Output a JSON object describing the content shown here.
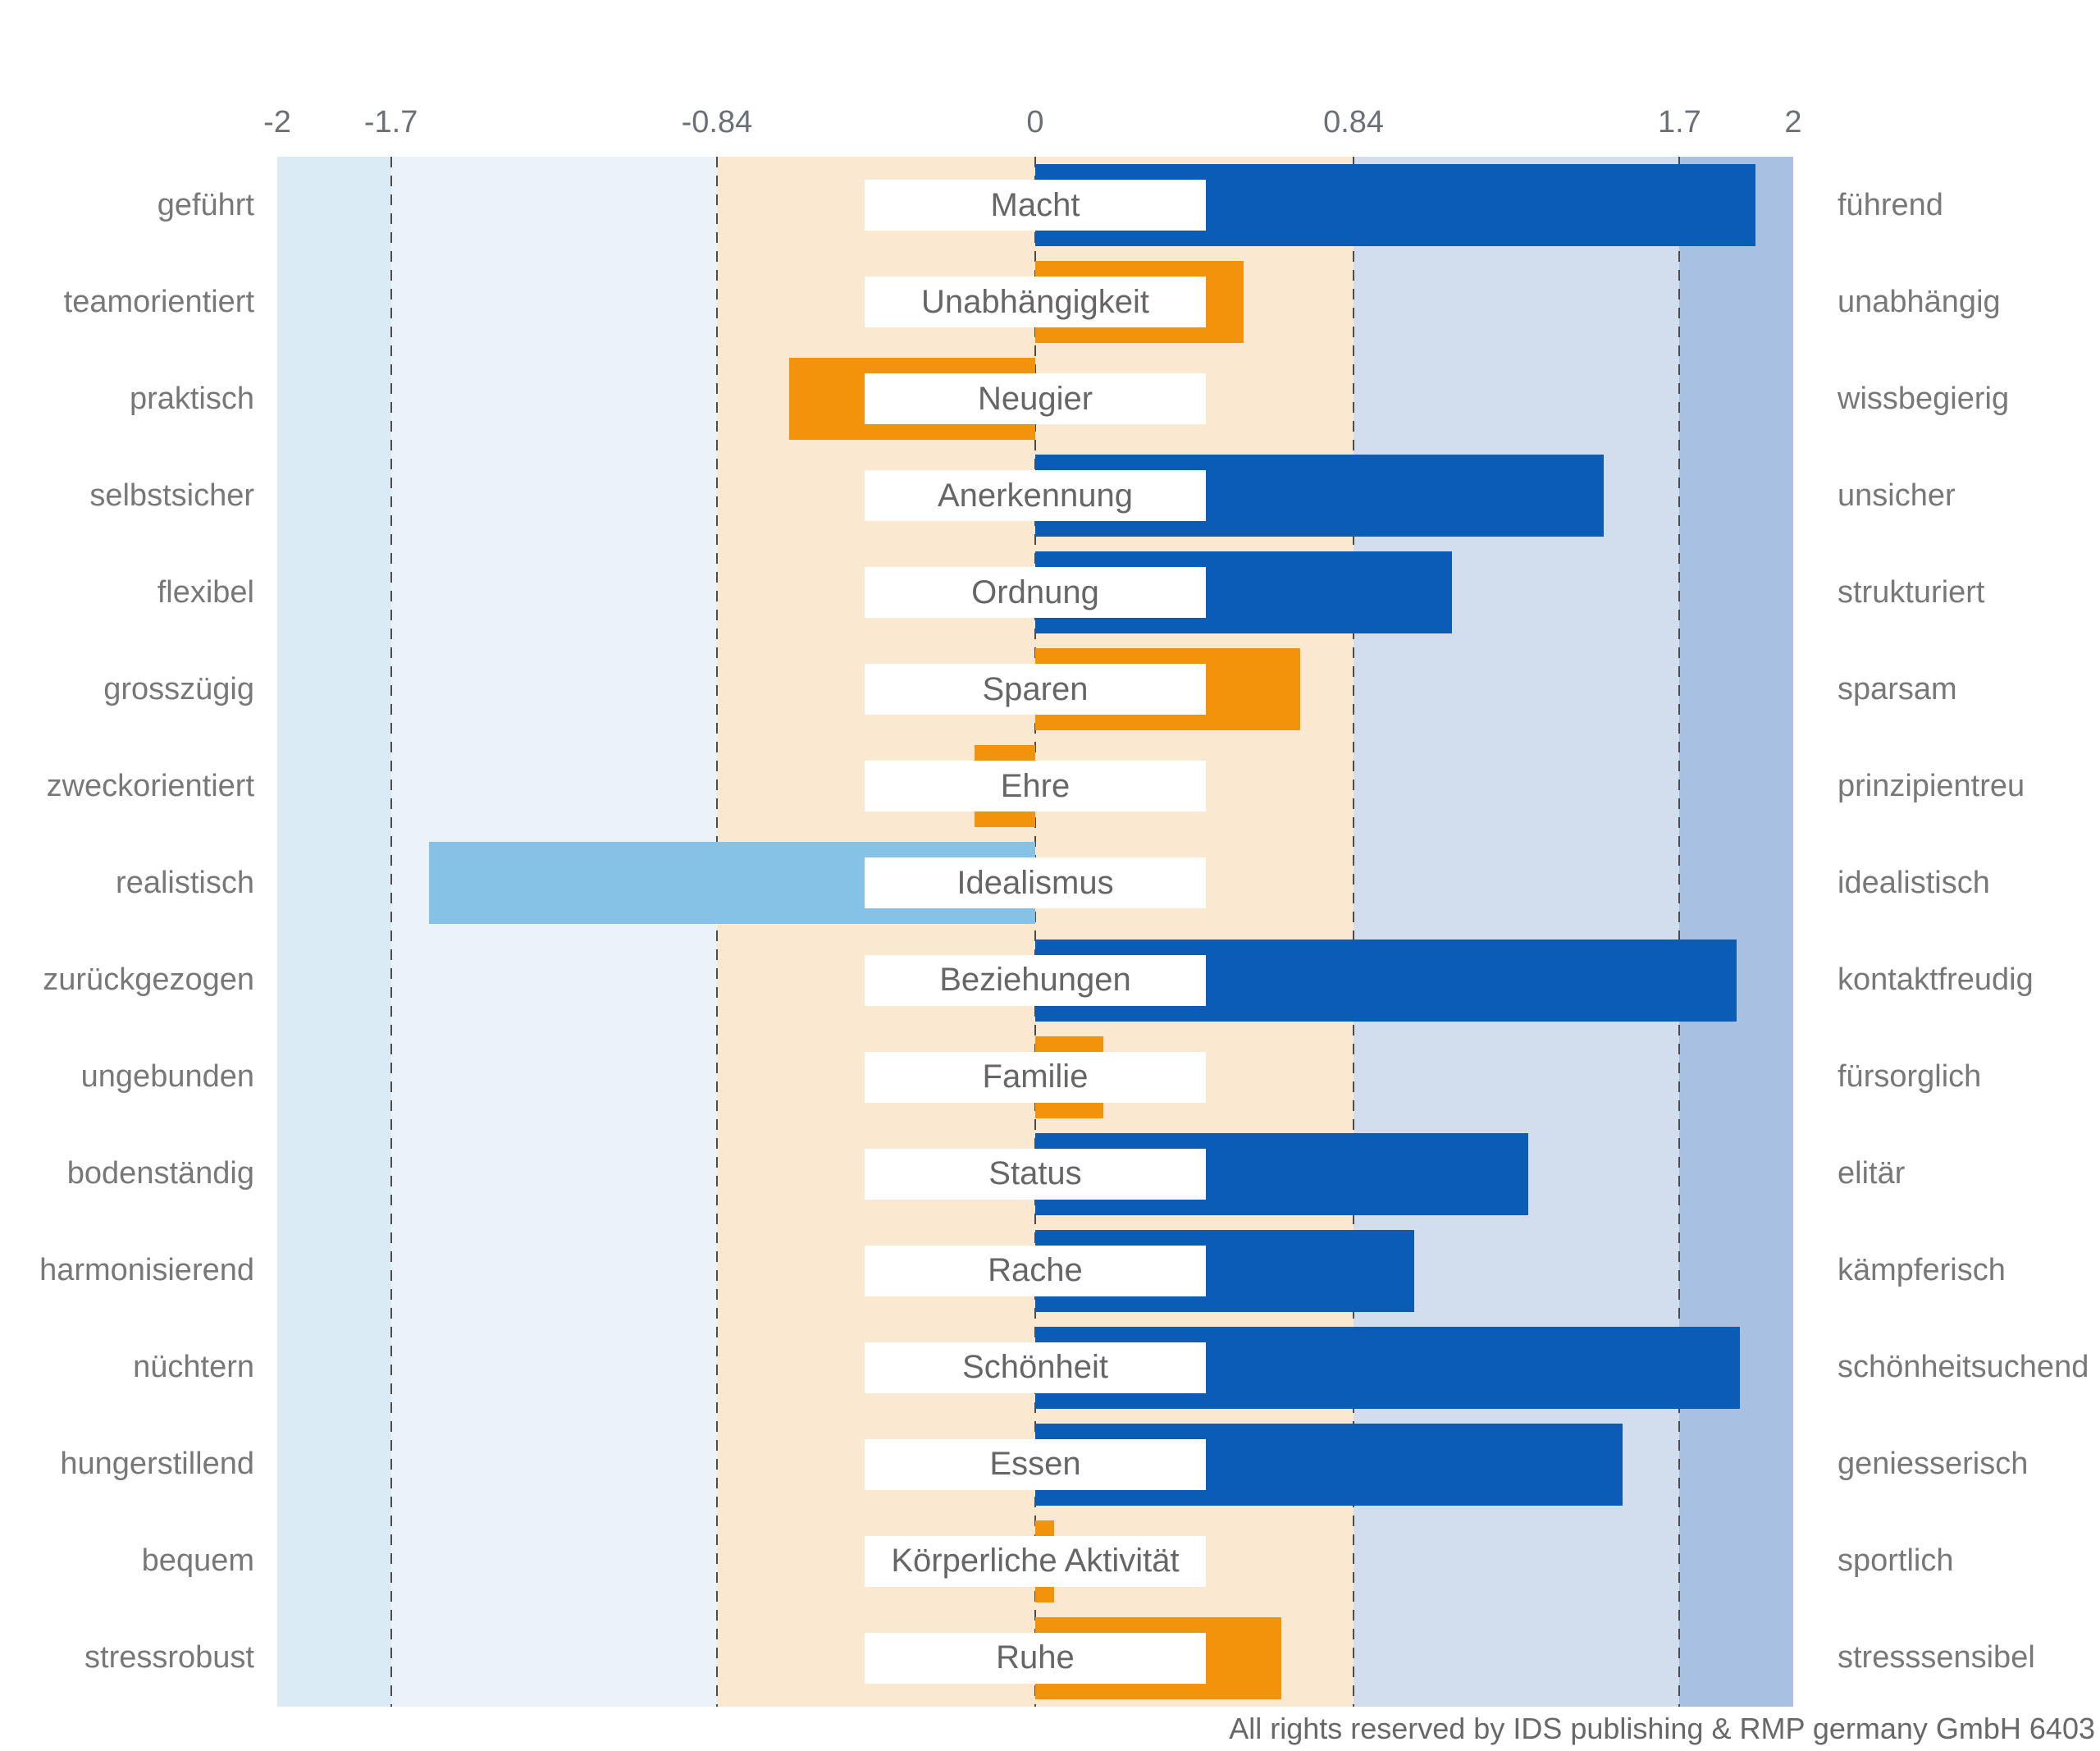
{
  "chart_data": {
    "type": "bar",
    "orientation": "horizontal",
    "xlim": [
      -2,
      2
    ],
    "grid": "dashed vertical lines at band boundaries",
    "legend_position": "none",
    "axis": {
      "tick_values": [
        -2,
        -1.7,
        -0.84,
        0,
        0.84,
        1.7,
        2
      ],
      "tick_labels": [
        "-2",
        "-1.7",
        "-0.84",
        "0",
        "0.84",
        "1.7",
        "2"
      ],
      "dashed_gridlines": [
        -1.7,
        -0.84,
        0,
        0.84,
        1.7
      ]
    },
    "bands": [
      {
        "from": -2,
        "to": -1.7,
        "color": "#DBEBF5"
      },
      {
        "from": -1.7,
        "to": -0.84,
        "color": "#EAF3FA"
      },
      {
        "from": -0.84,
        "to": 0.84,
        "color": "#FBE8D0"
      },
      {
        "from": 0.84,
        "to": 1.7,
        "color": "#D2DDEE"
      },
      {
        "from": 1.7,
        "to": 2,
        "color": "#A8C1E3"
      }
    ],
    "bar_colors": {
      "high_blue": "#0A5CB5",
      "mid_orange": "#F1930B",
      "low_lightblue": "#86C2E6"
    },
    "label_box_span": [
      -0.45,
      0.45
    ],
    "rows": [
      {
        "left_label": "geführt",
        "motive": "Macht",
        "right_label": "führend",
        "value": 1.9,
        "color": "high_blue"
      },
      {
        "left_label": "teamorientiert",
        "motive": "Unabhängigkeit",
        "right_label": "unabhängig",
        "value": 0.55,
        "color": "mid_orange"
      },
      {
        "left_label": "praktisch",
        "motive": "Neugier",
        "right_label": "wissbegierig",
        "value": -0.65,
        "color": "mid_orange"
      },
      {
        "left_label": "selbstsicher",
        "motive": "Anerkennung",
        "right_label": "unsicher",
        "value": 1.5,
        "color": "high_blue"
      },
      {
        "left_label": "flexibel",
        "motive": "Ordnung",
        "right_label": "strukturiert",
        "value": 1.1,
        "color": "high_blue"
      },
      {
        "left_label": "grosszügig",
        "motive": "Sparen",
        "right_label": "sparsam",
        "value": 0.7,
        "color": "mid_orange"
      },
      {
        "left_label": "zweckorientiert",
        "motive": "Ehre",
        "right_label": "prinzipientreu",
        "value": -0.16,
        "color": "mid_orange"
      },
      {
        "left_label": "realistisch",
        "motive": "Idealismus",
        "right_label": "idealistisch",
        "value": -1.6,
        "color": "low_lightblue"
      },
      {
        "left_label": "zurückgezogen",
        "motive": "Beziehungen",
        "right_label": "kontaktfreudig",
        "value": 1.85,
        "color": "high_blue"
      },
      {
        "left_label": "ungebunden",
        "motive": "Familie",
        "right_label": "fürsorglich",
        "value": 0.18,
        "color": "mid_orange"
      },
      {
        "left_label": "bodenständig",
        "motive": "Status",
        "right_label": "elitär",
        "value": 1.3,
        "color": "high_blue"
      },
      {
        "left_label": "harmonisierend",
        "motive": "Rache",
        "right_label": "kämpferisch",
        "value": 1.0,
        "color": "high_blue"
      },
      {
        "left_label": "nüchtern",
        "motive": "Schönheit",
        "right_label": "schönheitsuchend",
        "value": 1.86,
        "color": "high_blue"
      },
      {
        "left_label": "hungerstillend",
        "motive": "Essen",
        "right_label": "geniesserisch",
        "value": 1.55,
        "color": "high_blue"
      },
      {
        "left_label": "bequem",
        "motive": "Körperliche Aktivität",
        "right_label": "sportlich",
        "value": 0.05,
        "color": "mid_orange"
      },
      {
        "left_label": "stressrobust",
        "motive": "Ruhe",
        "right_label": "stresssensibel",
        "value": 0.65,
        "color": "mid_orange"
      }
    ]
  },
  "footer": {
    "copyright": "All rights reserved by IDS publishing & RMP germany GmbH 6403"
  }
}
